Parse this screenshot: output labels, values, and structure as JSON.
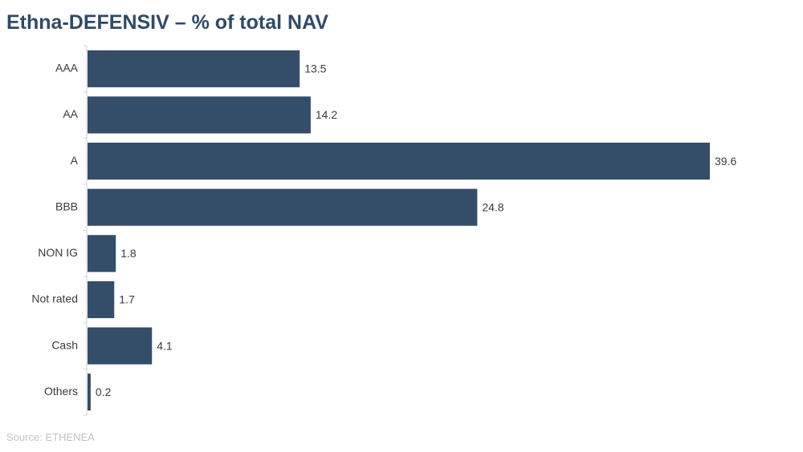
{
  "page": {
    "source": "Source: ETHENEA"
  },
  "colors": {
    "title": "#2f4a66",
    "bar": "#344e69",
    "axis": "#d0d0d0",
    "source": "#c2c2c2",
    "text": "#3a3a3a"
  },
  "chart_data": {
    "type": "bar",
    "orientation": "horizontal",
    "title": "Ethna-DEFENSIV – % of total NAV",
    "categories": [
      "AAA",
      "AA",
      "A",
      "BBB",
      "NON IG",
      "Not rated",
      "Cash",
      "Others"
    ],
    "values": [
      13.5,
      14.2,
      39.6,
      24.8,
      1.8,
      1.7,
      4.1,
      0.2
    ],
    "value_labels": [
      "13.5",
      "14.2",
      "39.6",
      "24.8",
      "1.8",
      "1.7",
      "4.1",
      "0.2"
    ],
    "xlabel": "",
    "ylabel": "",
    "xlim": [
      0,
      39.6
    ],
    "grid": false,
    "legend": "none"
  }
}
